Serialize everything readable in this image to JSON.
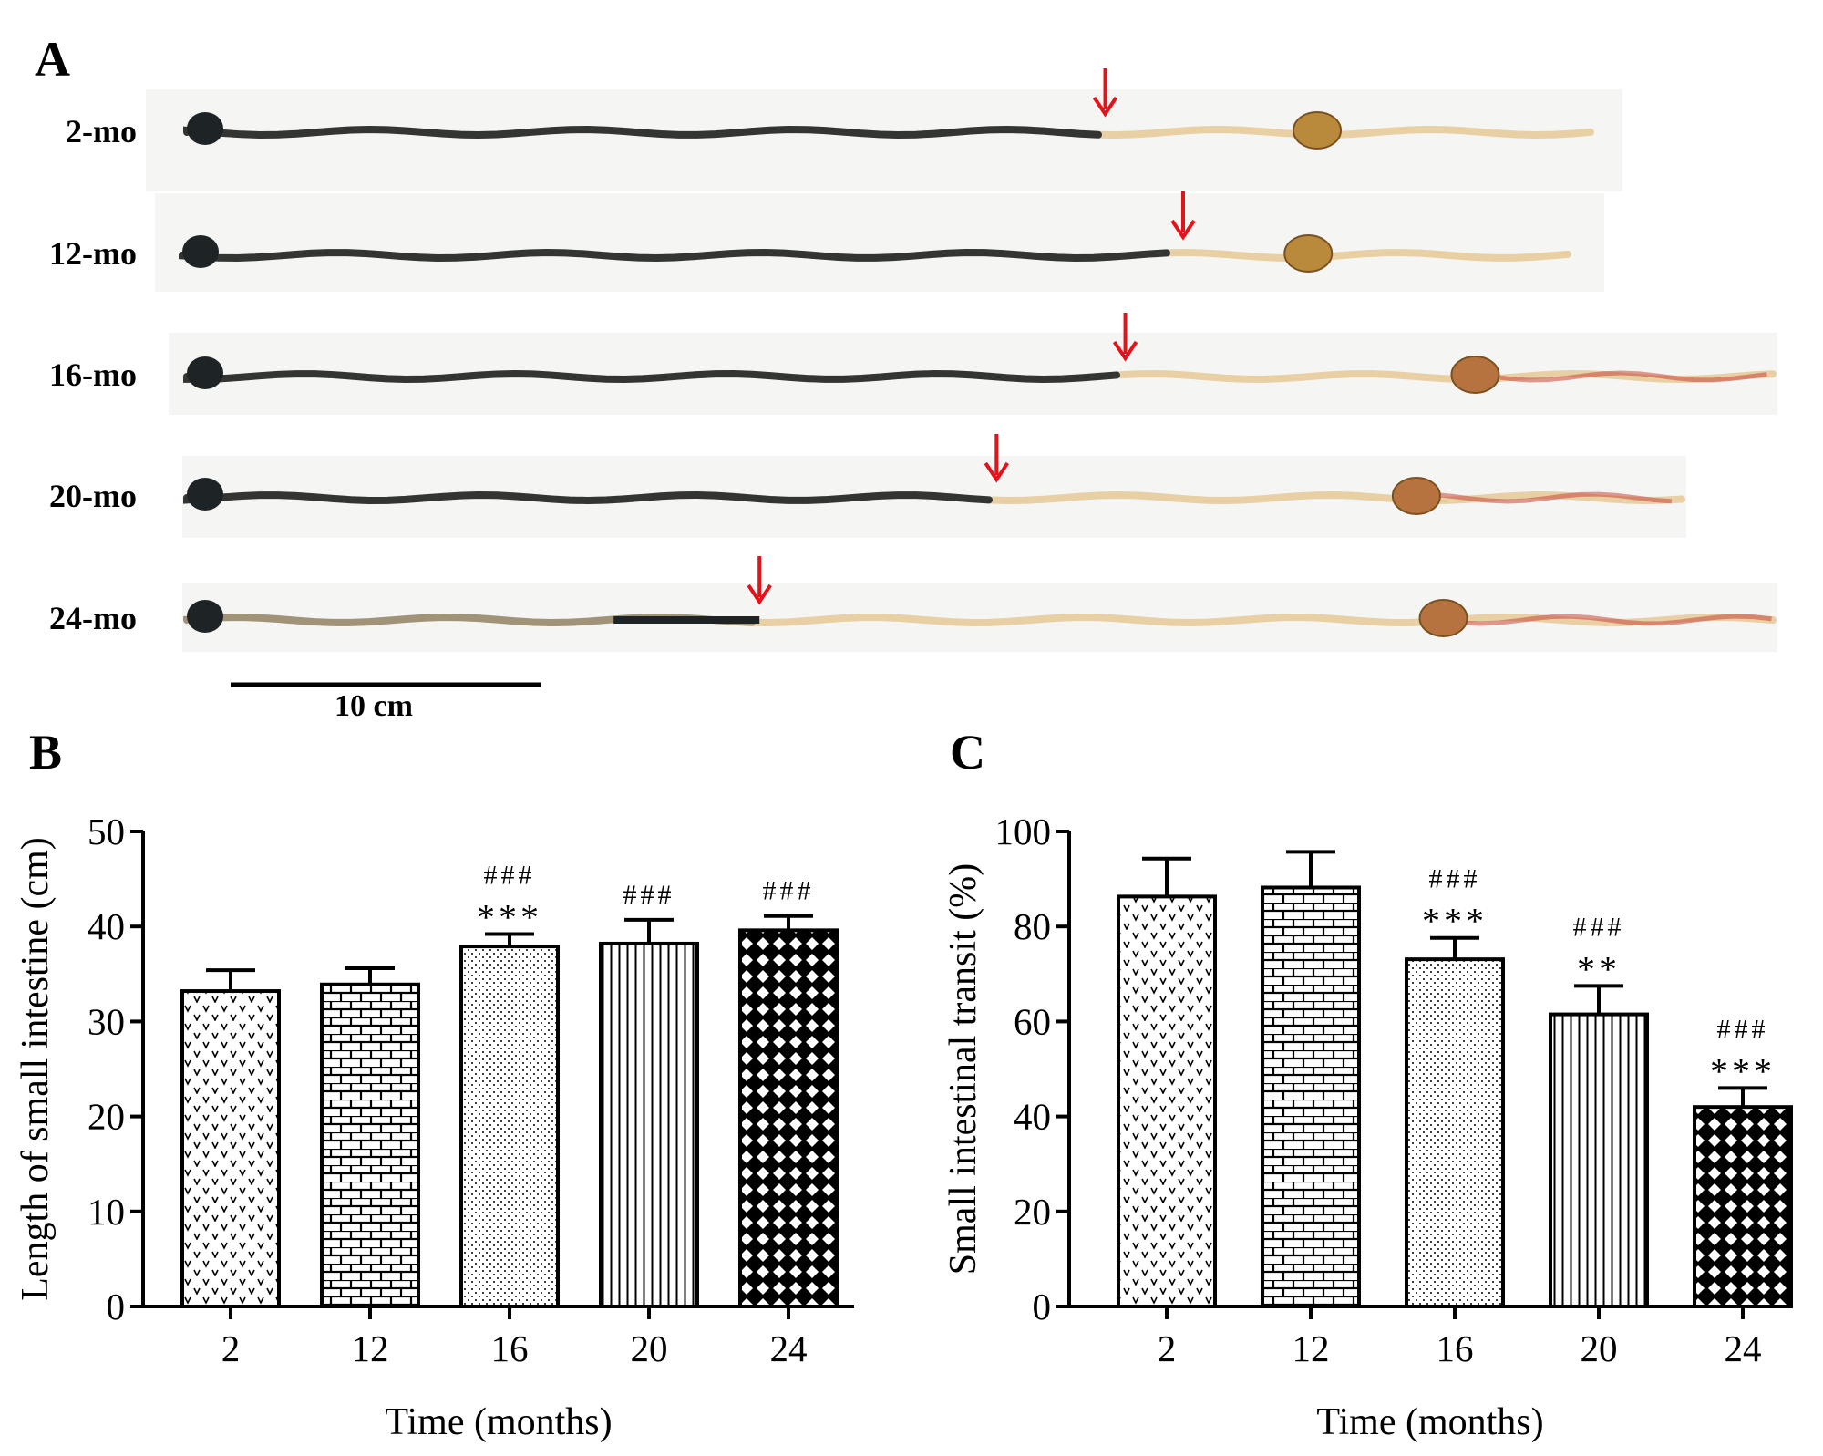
{
  "panel_a": {
    "letter": "A",
    "strips": [
      {
        "label": "2-mo",
        "arrow_position": 0.65,
        "cecum_position": 0.8
      },
      {
        "label": "12-mo",
        "arrow_position": 0.72,
        "cecum_position": 0.81
      },
      {
        "label": "16-mo",
        "arrow_position": 0.59,
        "cecum_position": 0.81
      },
      {
        "label": "20-mo",
        "arrow_position": 0.54,
        "cecum_position": 0.82
      },
      {
        "label": "24-mo",
        "arrow_position": 0.36,
        "cecum_position": 0.79
      }
    ],
    "scale_bar_label": "10 cm",
    "colors": {
      "black_content": "#1e2326",
      "intestine": "#e9cfa4",
      "red_tissue": "#c9483a",
      "cecum": "#b98a3c",
      "arrow": "#e3131b"
    }
  },
  "chart_data": [
    {
      "panel": "B",
      "type": "bar",
      "categories": [
        "2",
        "12",
        "16",
        "20",
        "24"
      ],
      "values": [
        33.2,
        33.9,
        37.9,
        38.2,
        39.6
      ],
      "errors": [
        2.2,
        1.7,
        1.3,
        2.5,
        1.5
      ],
      "annotations": [
        [
          "",
          ""
        ],
        [
          "",
          ""
        ],
        [
          "###",
          "***"
        ],
        [
          "###",
          ""
        ],
        [
          "###",
          ""
        ]
      ],
      "patterns": [
        "dots-v",
        "brick",
        "fine-dots",
        "vertical-lines",
        "crosshatch"
      ],
      "xlabel": "Time (months)",
      "ylabel": "Length of small intestine (cm)",
      "yticks": [
        "0",
        "10",
        "20",
        "30",
        "40",
        "50"
      ],
      "ylim": [
        0,
        50
      ]
    },
    {
      "panel": "C",
      "type": "bar",
      "categories": [
        "2",
        "12",
        "16",
        "20",
        "24"
      ],
      "values": [
        86.3,
        88.2,
        73.1,
        61.5,
        42.0
      ],
      "errors": [
        8.0,
        7.5,
        4.5,
        6.0,
        4.0
      ],
      "annotations": [
        [
          "",
          ""
        ],
        [
          "",
          ""
        ],
        [
          "###",
          "***"
        ],
        [
          "###",
          "**"
        ],
        [
          "###",
          "***"
        ]
      ],
      "patterns": [
        "dots-v",
        "brick",
        "fine-dots",
        "vertical-lines",
        "crosshatch"
      ],
      "xlabel": "Time (months)",
      "ylabel": "Small intestinal  transit (%)",
      "yticks": [
        "0",
        "20",
        "40",
        "60",
        "80",
        "100"
      ],
      "ylim": [
        0,
        100
      ]
    }
  ]
}
